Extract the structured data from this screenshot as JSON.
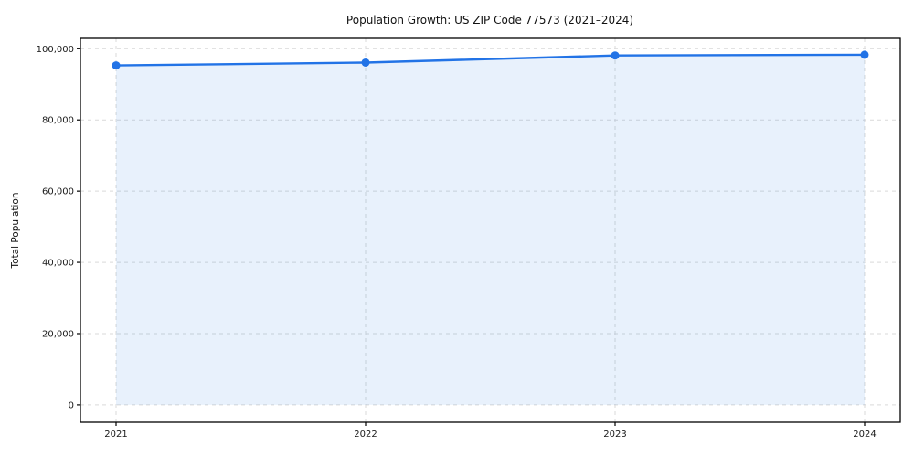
{
  "chart": {
    "title": "Population Growth: US ZIP Code 77573 (2021–2024)",
    "ylabel": "Total Population"
  },
  "chart_data": {
    "type": "line",
    "title": "Population Growth: US ZIP Code 77573 (2021–2024)",
    "xlabel": "",
    "ylabel": "Total Population",
    "categories": [
      "2021",
      "2022",
      "2023",
      "2024"
    ],
    "x": [
      2021,
      2022,
      2023,
      2024
    ],
    "series": [
      {
        "name": "Total Population",
        "values": [
          95300,
          96100,
          98100,
          98300
        ]
      }
    ],
    "values": [
      95300,
      96100,
      98100,
      98300
    ],
    "ylim": [
      -4900,
      102900
    ],
    "yticks": [
      0,
      20000,
      40000,
      60000,
      80000,
      100000
    ],
    "ytick_labels": [
      "0",
      "20,000",
      "40,000",
      "60,000",
      "80,000",
      "100,000"
    ],
    "grid": true,
    "grid_style": "dashed",
    "legend_position": "none",
    "area_fill": true,
    "marker": "circle",
    "colors": {
      "line": "#2273e6",
      "marker": "#2273e6",
      "area": "rgba(34,115,230,0.10)",
      "grid": "#d9d9d9",
      "spine": "#000000",
      "text": "#1a1a1a",
      "background": "#ffffff"
    }
  }
}
